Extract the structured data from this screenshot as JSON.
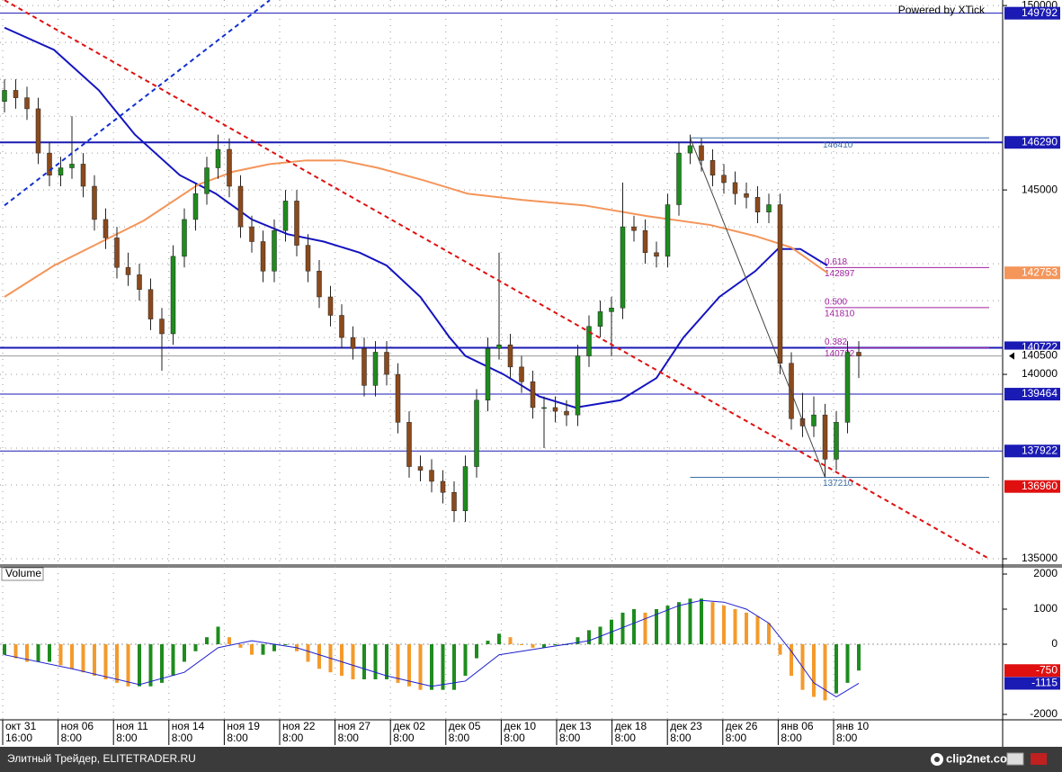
{
  "chart_data": {
    "type": "candlestick",
    "credit": "Powered by XTick",
    "up_color": "#1e8c1e",
    "down_color": "#8b4a1c",
    "ylim": [
      134830,
      150150
    ],
    "yticks": [
      135000,
      140000,
      145000,
      150000
    ],
    "minor_yticks": [
      136000,
      137000,
      138000,
      139000,
      141000,
      142000,
      143000,
      144000,
      146000,
      147000,
      148000,
      149000
    ],
    "grid": true,
    "ohlc": [
      [
        147400,
        148000,
        147100,
        147700
      ],
      [
        147700,
        148000,
        147200,
        147500
      ],
      [
        147500,
        147800,
        146900,
        147200
      ],
      [
        147200,
        147500,
        145700,
        146000
      ],
      [
        146000,
        146300,
        145100,
        145400
      ],
      [
        145400,
        145900,
        145100,
        145600
      ],
      [
        145600,
        147000,
        145300,
        145700
      ],
      [
        145700,
        146000,
        144800,
        145100
      ],
      [
        145100,
        145400,
        143900,
        144200
      ],
      [
        144200,
        144500,
        143400,
        143700
      ],
      [
        143700,
        144000,
        142600,
        142900
      ],
      [
        142900,
        143300,
        142400,
        142700
      ],
      [
        142700,
        143000,
        142000,
        142300
      ],
      [
        142300,
        142600,
        141200,
        141500
      ],
      [
        141500,
        141800,
        140100,
        141100
      ],
      [
        141100,
        143500,
        140800,
        143200
      ],
      [
        143200,
        144500,
        142900,
        144200
      ],
      [
        144200,
        145200,
        143900,
        144900
      ],
      [
        144900,
        145900,
        144600,
        145600
      ],
      [
        145600,
        146500,
        145300,
        146100
      ],
      [
        146100,
        146400,
        144800,
        145100
      ],
      [
        145100,
        145400,
        143700,
        144000
      ],
      [
        144000,
        144300,
        143300,
        143600
      ],
      [
        143600,
        143900,
        142500,
        142800
      ],
      [
        142800,
        144200,
        142500,
        143900
      ],
      [
        143900,
        145000,
        143600,
        144700
      ],
      [
        144700,
        145000,
        143200,
        143500
      ],
      [
        143500,
        143800,
        142500,
        142800
      ],
      [
        142800,
        143100,
        141800,
        142100
      ],
      [
        142100,
        142400,
        141300,
        141600
      ],
      [
        141600,
        141900,
        140700,
        141000
      ],
      [
        141000,
        141300,
        140400,
        140700
      ],
      [
        140700,
        141000,
        139400,
        139700
      ],
      [
        139700,
        140900,
        139400,
        140600
      ],
      [
        140600,
        140900,
        139700,
        140000
      ],
      [
        140000,
        140300,
        138400,
        138700
      ],
      [
        138700,
        139000,
        137200,
        137500
      ],
      [
        137500,
        137800,
        137100,
        137400
      ],
      [
        137400,
        137700,
        136800,
        137100
      ],
      [
        137100,
        137400,
        136500,
        136800
      ],
      [
        136800,
        137100,
        136000,
        136300
      ],
      [
        136300,
        137800,
        136000,
        137500
      ],
      [
        137500,
        139600,
        137200,
        139300
      ],
      [
        139300,
        141000,
        139000,
        140700
      ],
      [
        140700,
        143300,
        140400,
        140800
      ],
      [
        140800,
        141100,
        139900,
        140200
      ],
      [
        140200,
        140500,
        139500,
        139800
      ],
      [
        139800,
        140100,
        138800,
        139100
      ],
      [
        139100,
        139400,
        138000,
        139100
      ],
      [
        139100,
        139400,
        138700,
        139000
      ],
      [
        139000,
        139300,
        138600,
        138900
      ],
      [
        138900,
        140800,
        138600,
        140500
      ],
      [
        140500,
        141600,
        140200,
        141300
      ],
      [
        141300,
        142000,
        141000,
        141700
      ],
      [
        141700,
        142100,
        140500,
        141800
      ],
      [
        141800,
        145200,
        141500,
        144000
      ],
      [
        144000,
        144300,
        143600,
        143900
      ],
      [
        143900,
        144200,
        143000,
        143300
      ],
      [
        143300,
        143600,
        142900,
        143200
      ],
      [
        143200,
        144900,
        142900,
        144600
      ],
      [
        144600,
        146300,
        144300,
        146000
      ],
      [
        146000,
        146500,
        145700,
        146200
      ],
      [
        146200,
        146400,
        145500,
        145800
      ],
      [
        145800,
        146100,
        145100,
        145400
      ],
      [
        145400,
        145700,
        144900,
        145200
      ],
      [
        145200,
        145500,
        144600,
        144900
      ],
      [
        144900,
        145200,
        144500,
        144800
      ],
      [
        144800,
        145100,
        144100,
        144400
      ],
      [
        144400,
        144900,
        144100,
        144600
      ],
      [
        144600,
        144900,
        140000,
        140300
      ],
      [
        140300,
        140600,
        138500,
        138800
      ],
      [
        138800,
        139500,
        138300,
        138600
      ],
      [
        138600,
        139400,
        138300,
        138900
      ],
      [
        138900,
        139200,
        137200,
        137700
      ],
      [
        137700,
        139000,
        137400,
        138700
      ],
      [
        138700,
        140900,
        138400,
        140600
      ],
      [
        140600,
        140900,
        139900,
        140500
      ]
    ],
    "moving_averages": [
      {
        "color": "#1414c0",
        "x": [
          0,
          4.4,
          8.4,
          11.6,
          15.6,
          18.8,
          22,
          25.2,
          28.4,
          31.6,
          34,
          37,
          39.6,
          41,
          44.4,
          47.6,
          50.8,
          54.8,
          58,
          60.4,
          63.6,
          66.8,
          68.8,
          70.8,
          73.2
        ],
        "values": [
          149400,
          148800,
          147700,
          146500,
          145400,
          144900,
          144200,
          143800,
          143600,
          143300,
          142950,
          142100,
          141000,
          140500,
          140000,
          139400,
          139100,
          139300,
          139900,
          141000,
          142100,
          142800,
          143400,
          143400,
          142950
        ]
      },
      {
        "color": "#f4955a",
        "x": [
          0,
          4.4,
          8.4,
          12.4,
          17.2,
          20.4,
          23.6,
          26.8,
          30,
          33.2,
          37.2,
          41.2,
          46,
          51.6,
          57.2,
          62.8,
          66.8,
          70,
          73.2
        ],
        "values": [
          142100,
          142950,
          143560,
          144170,
          145140,
          145500,
          145700,
          145800,
          145800,
          145600,
          145270,
          144900,
          144730,
          144580,
          144290,
          144050,
          143750,
          143440,
          142753
        ]
      }
    ],
    "trendlines": [
      {
        "color": "#e01010",
        "dashed": true,
        "x": [
          0,
          87.6
        ],
        "values": [
          150146,
          135000
        ]
      },
      {
        "color": "#1030d0",
        "dashed": true,
        "x": [
          0,
          23.6
        ],
        "values": [
          144580,
          150146
        ]
      },
      {
        "color": "#444444",
        "dashed": false,
        "x": [
          61,
          73
        ],
        "values": [
          146410,
          137210
        ]
      }
    ],
    "levels": [
      {
        "value": 149792,
        "color": "#1a1ab4",
        "width": 1
      },
      {
        "value": 146290,
        "color": "#1a1ab4",
        "width": 2
      },
      {
        "value": 140722,
        "color": "#1a1ab4",
        "width": 2
      },
      {
        "value": 139464,
        "color": "#1a1ab4",
        "width": 1
      },
      {
        "value": 137922,
        "color": "#1a1ab4",
        "width": 1
      },
      {
        "value": 136960,
        "color": "#e01010",
        "width": 0
      }
    ],
    "fib": {
      "start": 61,
      "ratio_start": 73,
      "high": 146410,
      "low": 137210,
      "line_color": "#3a6ea5",
      "ratio_color": "#a020a0",
      "levels": [
        {
          "ratio": "0.618",
          "price": 142897
        },
        {
          "ratio": "0.500",
          "price": 141810
        },
        {
          "ratio": "0.382",
          "price": 140722
        }
      ]
    },
    "date_labels": [
      "окт 31",
      "ноя 06",
      "ноя 11",
      "ноя 14",
      "ноя 19",
      "ноя 22",
      "ноя 27",
      "дек 02",
      "дек 05",
      "дек 10",
      "дек 13",
      "дек 18",
      "дек 23",
      "дек 26",
      "янв 06",
      "янв 10"
    ],
    "time_labels": [
      "16:00",
      "8:00",
      "8:00",
      "8:00",
      "8:00",
      "8:00",
      "8:00",
      "8:00",
      "8:00",
      "8:00",
      "8:00",
      "8:00",
      "8:00",
      "8:00",
      "8:00",
      "8:00"
    ],
    "volume": {
      "label": "Volume",
      "up_color": "#1e8c1e",
      "down_color": "#f39a2c",
      "ylim": [
        -2154,
        2205
      ],
      "yticks": [
        -2000,
        0,
        1000,
        2000
      ],
      "values": [
        -300,
        -400,
        -500,
        -500,
        -500,
        -600,
        -700,
        -800,
        -900,
        -1000,
        -1100,
        -1200,
        -1200,
        -1200,
        -1100,
        -900,
        -500,
        -200,
        200,
        500,
        200,
        -100,
        -300,
        -300,
        -200,
        0,
        -200,
        -500,
        -700,
        -800,
        -900,
        -1000,
        -1000,
        -1000,
        -1000,
        -1100,
        -1200,
        -1300,
        -1300,
        -1300,
        -1300,
        -900,
        -400,
        100,
        300,
        200,
        0,
        -100,
        -100,
        0,
        0,
        200,
        400,
        500,
        700,
        900,
        1000,
        900,
        1000,
        1100,
        1200,
        1300,
        1300,
        1200,
        1100,
        1000,
        900,
        800,
        600,
        -300,
        -900,
        -1300,
        -1500,
        -1600,
        -1400,
        -1100,
        -750
      ],
      "signal": {
        "color": "#2020d0",
        "x": [
          0,
          6,
          12,
          16,
          19,
          22,
          26,
          30,
          34,
          38,
          41,
          44,
          48,
          52,
          56,
          60,
          62,
          64,
          66,
          68,
          70,
          72,
          74,
          76
        ],
        "values": [
          -300,
          -700,
          -1150,
          -800,
          -100,
          100,
          -100,
          -500,
          -900,
          -1200,
          -1050,
          -300,
          -100,
          100,
          600,
          1100,
          1250,
          1200,
          1000,
          600,
          -200,
          -1100,
          -1500,
          -1115
        ]
      }
    }
  },
  "footer": {
    "text": "Элитный Трейдер, ELITETRADER.RU",
    "logo": "clip2net.com"
  }
}
